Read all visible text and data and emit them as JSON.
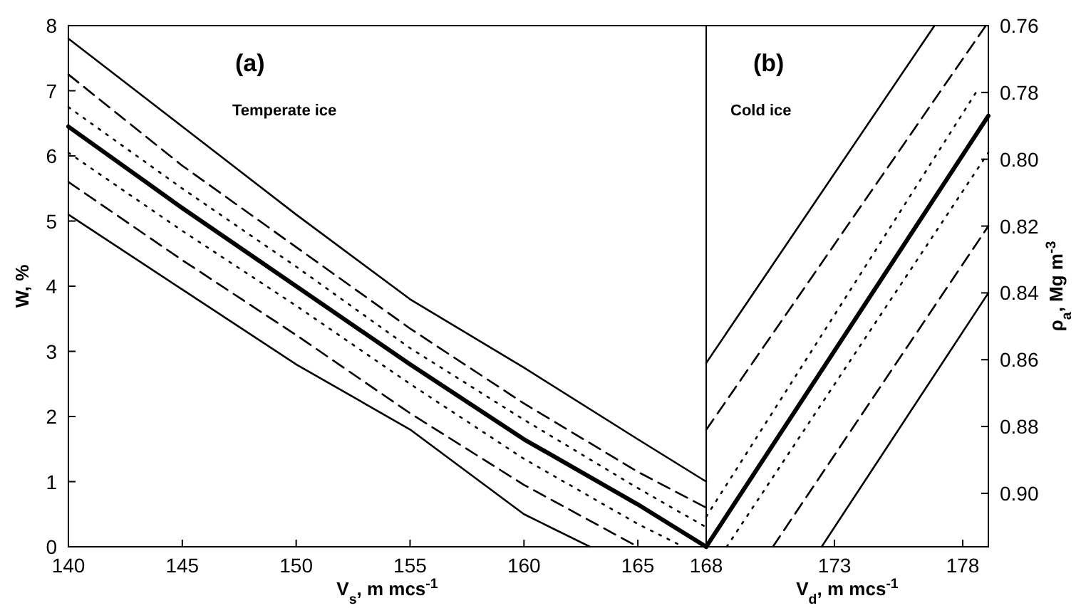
{
  "chart_data": [
    {
      "type": "line",
      "xlabel": "V$_{s}$, m mcs$^{-1}$",
      "ylabel": "W, %",
      "xlim": [
        140,
        168
      ],
      "ylim": [
        0,
        8
      ],
      "xticks": [
        140,
        145,
        150,
        155,
        160,
        165
      ],
      "yticks": [
        0,
        1,
        2,
        3,
        4,
        5,
        6,
        7,
        8
      ],
      "grid": false,
      "marker": "none",
      "annotations": [
        "(a)",
        "Temperate ice"
      ],
      "series": [
        {
          "color": "#000000",
          "line_style": "solid",
          "x": [
            140,
            145,
            150,
            155,
            160,
            165,
            168
          ],
          "values": [
            7.8,
            6.45,
            5.1,
            3.8,
            2.75,
            1.65,
            1.0
          ]
        },
        {
          "color": "#000000",
          "line_style": "dashed",
          "x": [
            140,
            145,
            150,
            155,
            160,
            165,
            168
          ],
          "values": [
            7.25,
            5.85,
            4.6,
            3.35,
            2.2,
            1.15,
            0.6
          ]
        },
        {
          "color": "#000000",
          "line_style": "dotted",
          "x": [
            140,
            145,
            150,
            155,
            160,
            165,
            168
          ],
          "values": [
            6.75,
            5.5,
            4.3,
            3.05,
            1.95,
            0.9,
            0.3
          ]
        },
        {
          "color": "#000000",
          "line_style": "solid",
          "x": [
            140,
            145,
            150,
            155,
            160,
            165,
            168
          ],
          "values": [
            6.45,
            5.2,
            4.0,
            2.8,
            1.65,
            0.65,
            0
          ]
        },
        {
          "color": "#000000",
          "line_style": "dotted",
          "x": [
            140,
            145,
            150,
            155,
            160,
            165,
            167
          ],
          "values": [
            6.05,
            4.85,
            3.7,
            2.5,
            1.35,
            0.35,
            0
          ]
        },
        {
          "color": "#000000",
          "line_style": "dashed",
          "x": [
            140,
            145,
            150,
            155,
            160,
            165
          ],
          "values": [
            5.6,
            4.4,
            3.25,
            2.05,
            0.95,
            0
          ]
        },
        {
          "color": "#000000",
          "line_style": "solid",
          "x": [
            140,
            145,
            150,
            155,
            160,
            162.9
          ],
          "values": [
            5.1,
            3.95,
            2.8,
            1.8,
            0.5,
            0
          ]
        }
      ]
    },
    {
      "type": "line",
      "xlabel": "V$_{d}$, m mcs$^{-1}$",
      "y2label": "ρ$_{a}$, Mg m$^{-3}$",
      "xlim": [
        168,
        179
      ],
      "y2lim": [
        0.916,
        0.76
      ],
      "xticks": [
        168,
        173,
        178
      ],
      "y2ticks": [
        {
          "value": 0.76,
          "label": "0.76"
        },
        {
          "value": 0.78,
          "label": "0.78"
        },
        {
          "value": 0.8,
          "label": "0.80"
        },
        {
          "value": 0.82,
          "label": "0.82"
        },
        {
          "value": 0.84,
          "label": "0.84"
        },
        {
          "value": 0.86,
          "label": "0.86"
        },
        {
          "value": 0.88,
          "label": "0.88"
        },
        {
          "value": 0.9,
          "label": "0.90"
        }
      ],
      "grid": false,
      "marker": "none",
      "annotations": [
        "(b)",
        "Cold ice"
      ],
      "series": [
        {
          "color": "#000000",
          "line_style": "solid",
          "axis": "y2",
          "x": [
            168,
            176.9
          ],
          "values": [
            0.861,
            0.76
          ]
        },
        {
          "color": "#000000",
          "line_style": "dashed",
          "axis": "y2",
          "x": [
            168,
            178.9
          ],
          "values": [
            0.881,
            0.76
          ]
        },
        {
          "color": "#000000",
          "line_style": "dotted",
          "axis": "y2",
          "x": [
            168,
            178.6
          ],
          "values": [
            0.907,
            0.779
          ]
        },
        {
          "color": "#000000",
          "line_style": "solid",
          "axis": "y2",
          "x": [
            168,
            179
          ],
          "values": [
            0.916,
            0.787
          ]
        },
        {
          "color": "#000000",
          "line_style": "dotted",
          "axis": "y2",
          "x": [
            168.8,
            179
          ],
          "values": [
            0.916,
            0.798
          ]
        },
        {
          "color": "#000000",
          "line_style": "dashed",
          "axis": "y2",
          "x": [
            170.6,
            179
          ],
          "values": [
            0.916,
            0.82
          ]
        },
        {
          "color": "#000000",
          "line_style": "solid",
          "axis": "y2",
          "x": [
            172.5,
            179
          ],
          "values": [
            0.916,
            0.84
          ]
        }
      ]
    }
  ]
}
